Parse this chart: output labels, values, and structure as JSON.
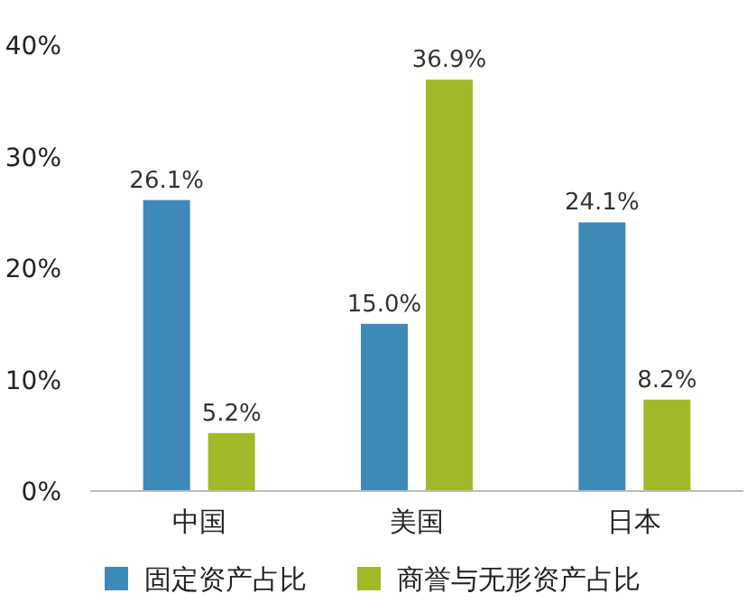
{
  "chart_data": {
    "type": "bar",
    "categories": [
      "中国",
      "美国",
      "日本"
    ],
    "series": [
      {
        "name": "固定资产占比",
        "color": "#3d8ab8",
        "values": [
          26.1,
          15.0,
          24.1
        ],
        "value_labels": [
          "26.1%",
          "15.0%",
          "24.1%"
        ]
      },
      {
        "name": "商誉与无形资产占比",
        "color": "#a1b828",
        "values": [
          5.2,
          36.9,
          8.2
        ],
        "value_labels": [
          "5.2%",
          "36.9%",
          "8.2%"
        ]
      }
    ],
    "ylim": [
      0,
      40
    ],
    "yticks": [
      {
        "value": 0,
        "label": "0%"
      },
      {
        "value": 10,
        "label": "10%"
      },
      {
        "value": 20,
        "label": "20%"
      },
      {
        "value": 30,
        "label": "30%"
      },
      {
        "value": 40,
        "label": "40%"
      }
    ],
    "legend": "bottom"
  }
}
